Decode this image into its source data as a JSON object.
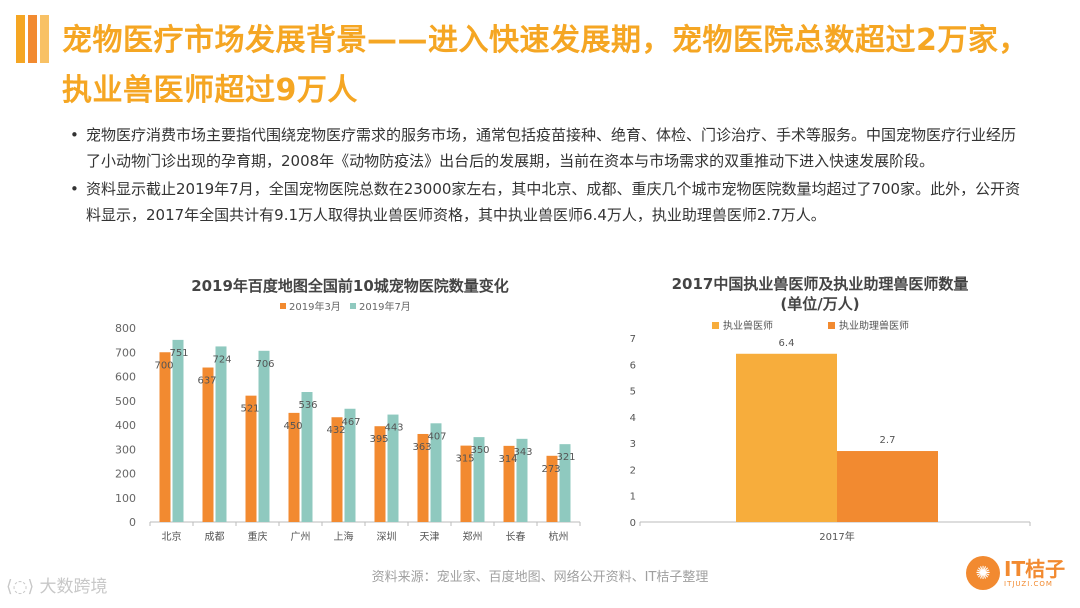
{
  "colors": {
    "orange": "#f28a30",
    "teal": "#8fc9bf",
    "light_orange": "#f7ad3c",
    "title_orange": "#f5a623"
  },
  "title_line1": "宠物医疗市场发展背景——进入快速发展期，宠物医院总数超过2万家，",
  "title_line2": "执业兽医师超过9万人",
  "bullets": [
    "宠物医疗消费市场主要指代围绕宠物医疗需求的服务市场，通常包括疫苗接种、绝育、体检、门诊治疗、手术等服务。中国宠物医疗行业经历了小动物门诊出现的孕育期，2008年《动物防疫法》出台后的发展期，当前在资本与市场需求的双重推动下进入快速发展阶段。",
    "资料显示截止2019年7月，全国宠物医院总数在23000家左右，其中北京、成都、重庆几个城市宠物医院数量均超过了700家。此外，公开资料显示，2017年全国共计有9.1万人取得执业兽医师资格，其中执业兽医师6.4万人，执业助理兽医师2.7万人。"
  ],
  "chart_data": [
    {
      "type": "bar",
      "title": "2019年百度地图全国前10城宠物医院数量变化",
      "categories": [
        "北京",
        "成都",
        "重庆",
        "广州",
        "上海",
        "深圳",
        "天津",
        "郑州",
        "长春",
        "杭州"
      ],
      "series": [
        {
          "name": "2019年3月",
          "values": [
            700,
            637,
            521,
            450,
            432,
            395,
            363,
            315,
            314,
            273
          ],
          "color": "#f28a30"
        },
        {
          "name": "2019年7月",
          "values": [
            751,
            724,
            706,
            536,
            467,
            443,
            407,
            350,
            343,
            321
          ],
          "color": "#8fc9bf"
        }
      ],
      "ylim": [
        0,
        800
      ],
      "yticks": [
        0,
        100,
        200,
        300,
        400,
        500,
        600,
        700,
        800
      ],
      "legend_position": "top",
      "grid": false
    },
    {
      "type": "bar",
      "title_line1": "2017中国执业兽医师及执业助理兽医师数量",
      "title_line2": "(单位/万人)",
      "categories": [
        "2017年"
      ],
      "series": [
        {
          "name": "执业兽医师",
          "values": [
            6.4
          ],
          "color": "#f7ad3c"
        },
        {
          "name": "执业助理兽医师",
          "values": [
            2.7
          ],
          "color": "#f28a30"
        }
      ],
      "ylim": [
        0,
        7
      ],
      "yticks": [
        0,
        1,
        2,
        3,
        4,
        5,
        6,
        7
      ],
      "legend_position": "top-left",
      "grid": false
    }
  ],
  "source": "资料来源：宠业家、百度地图、网络公开资料、IT桔子整理",
  "watermark_left": "大数跨境",
  "logo": {
    "name": "IT桔子",
    "sub": "ITJUZI.COM",
    "icon": "orange-slice-icon"
  }
}
